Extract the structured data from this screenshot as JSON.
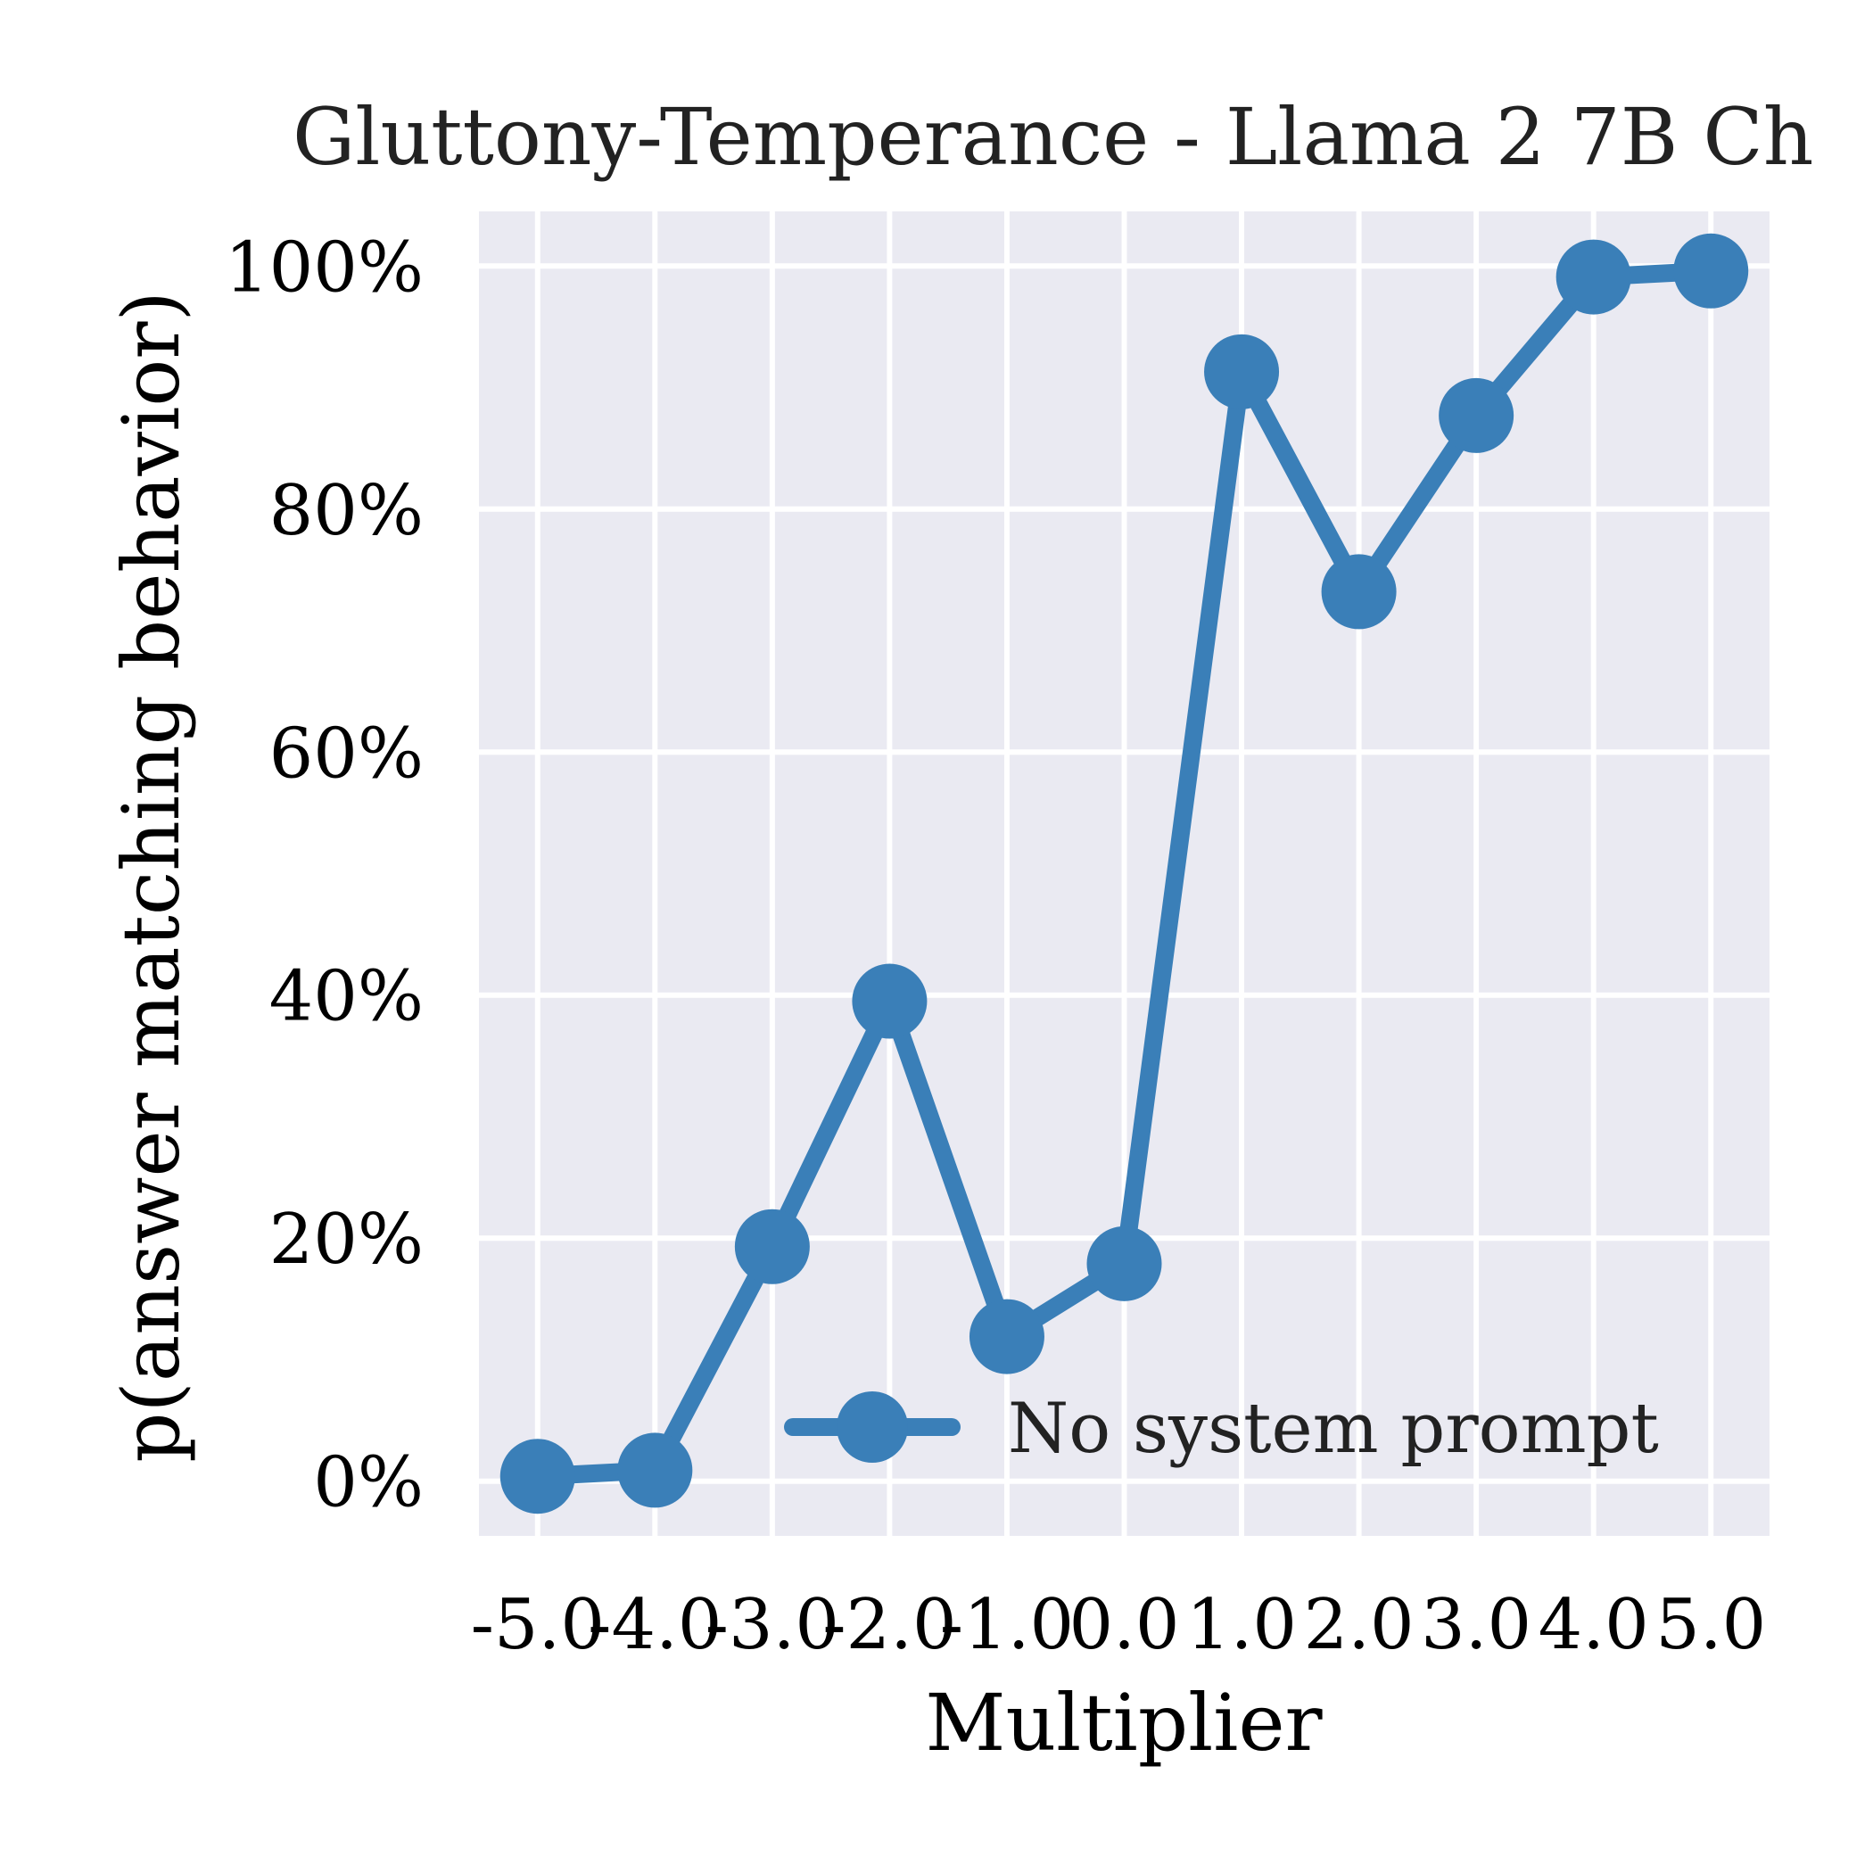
{
  "chart_data": {
    "type": "line",
    "title": "Gluttony-Temperance - Llama 2 7B Ch",
    "xlabel": "Multiplier",
    "ylabel": "p(answer matching behavior)",
    "x": [
      -5.0,
      -4.0,
      -3.0,
      -2.0,
      -1.0,
      0.0,
      1.0,
      2.0,
      3.0,
      4.0,
      5.0
    ],
    "x_tick_labels": [
      "-5.0",
      "-4.0",
      "-3.0",
      "-2.0",
      "-1.0",
      "0.0",
      "1.0",
      "2.0",
      "3.0",
      "4.0",
      "5.0"
    ],
    "y_ticks": [
      0,
      20,
      40,
      60,
      80,
      100
    ],
    "y_tick_labels": [
      "0%",
      "20%",
      "40%",
      "60%",
      "80%",
      "100%"
    ],
    "xlim": [
      -5.5,
      5.5
    ],
    "ylim": [
      -4.5,
      104.5
    ],
    "grid": true,
    "legend_position": "lower-right",
    "colors": {
      "series": "#3a7fb8",
      "axes_bg": "#eaeaf2",
      "grid": "#ffffff",
      "text": "#222222"
    },
    "series": [
      {
        "name": "No system prompt",
        "values": [
          0.4,
          0.9,
          19.3,
          39.5,
          11.9,
          17.9,
          91.3,
          73.2,
          87.7,
          99.1,
          99.6
        ]
      }
    ]
  }
}
